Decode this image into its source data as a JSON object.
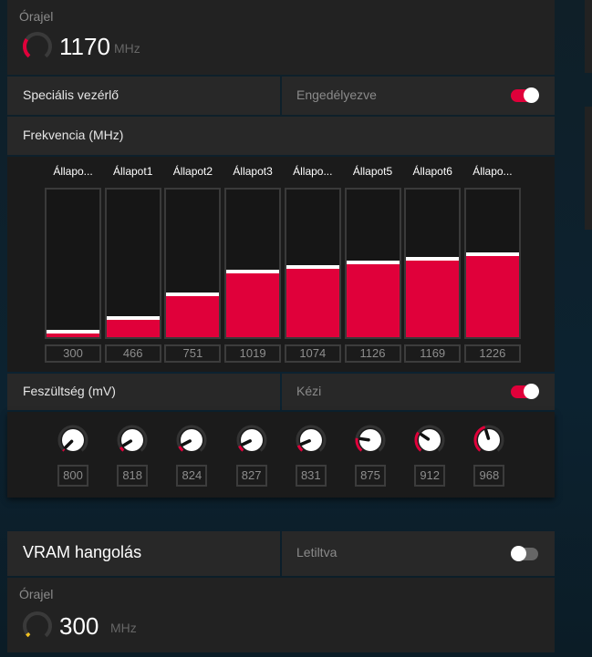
{
  "gpu_clock": {
    "label": "Órajel",
    "value": "1170",
    "unit": "MHz",
    "gauge_fraction": 0.3,
    "color": "#e0003a"
  },
  "custom_control": {
    "label": "Speciális vezérlő",
    "status": "Engedélyezve",
    "enabled": true
  },
  "frequency": {
    "title": "Frekvencia (MHz)",
    "states": [
      {
        "label": "Állapo...",
        "value": 300
      },
      {
        "label": "Állapot1",
        "value": 466
      },
      {
        "label": "Állapot2",
        "value": 751
      },
      {
        "label": "Állapot3",
        "value": 1019
      },
      {
        "label": "Állapo...",
        "value": 1074
      },
      {
        "label": "Állapot5",
        "value": 1126
      },
      {
        "label": "Állapot6",
        "value": 1169
      },
      {
        "label": "Állapo...",
        "value": 1226
      }
    ]
  },
  "voltage": {
    "title": "Feszültség (mV)",
    "status": "Kézi",
    "enabled": true,
    "values": [
      800,
      818,
      824,
      827,
      831,
      875,
      912,
      968
    ]
  },
  "vram": {
    "title": "VRAM hangolás",
    "status": "Letiltva",
    "enabled": false
  },
  "vram_clock": {
    "label": "Órajel",
    "value": "300",
    "unit": "MHz",
    "gauge_fraction": 0.05,
    "color": "#f0c020"
  },
  "colors": {
    "accent": "#e0003a",
    "panel": "#222222",
    "background": "#0c2230"
  }
}
